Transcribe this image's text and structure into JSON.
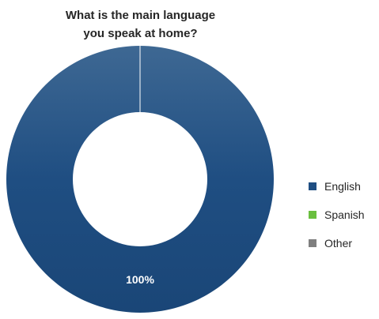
{
  "chart_data": {
    "type": "pie",
    "subtype": "donut",
    "title_lines": [
      "What is the main language",
      "you speak at home?"
    ],
    "categories": [
      "English",
      "Spanish",
      "Other"
    ],
    "values": [
      100,
      0,
      0
    ],
    "data_labels": [
      "100%",
      "",
      ""
    ],
    "colors": [
      "#1f4e82",
      "#6abf3f",
      "#7f7f7f"
    ],
    "legend_position": "right"
  }
}
